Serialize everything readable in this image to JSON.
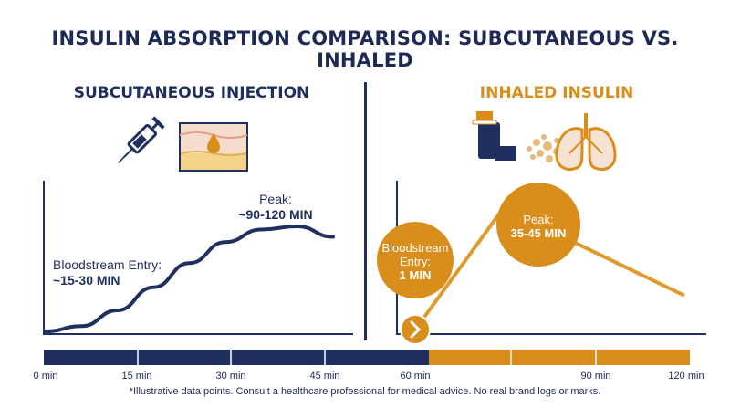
{
  "title": "INSULIN ABSORPTION COMPARISON: SUBCUTANEOUS VS. INHALED",
  "panels": {
    "subcutaneous": {
      "title": "SUBCUTANEOUS INJECTION",
      "entry_label": "Bloodstream Entry:",
      "entry_value": "~15-30 MIN",
      "peak_label": "Peak:",
      "peak_value": "~90-120 MIN"
    },
    "inhaled": {
      "title": "INHALED INSULIN",
      "entry_label_1": "Bloodstream",
      "entry_label_2": "Entry:",
      "entry_value": "1 MIN",
      "peak_label": "Peak:",
      "peak_value": "35-45 MIN"
    }
  },
  "timeline": {
    "ticks": [
      "0 min",
      "15 min",
      "30 min",
      "45 min",
      "60 min",
      "90 min",
      "120 min"
    ],
    "colors": {
      "subcutaneous": "#1f3060",
      "inhaled": "#d98e1c"
    }
  },
  "footnote": "*Illustrative data points. Consult a healthcare professional for medical advice. No real brand logs or marks.",
  "chart_data": [
    {
      "type": "line",
      "name": "Subcutaneous Injection",
      "x": [
        0,
        15,
        30,
        45,
        60,
        75,
        90,
        105,
        120
      ],
      "y": [
        0,
        0.05,
        0.2,
        0.42,
        0.65,
        0.85,
        0.97,
        1.0,
        0.9
      ],
      "annotations": [
        {
          "label": "Bloodstream Entry:",
          "value": "~15-30 MIN"
        },
        {
          "label": "Peak:",
          "value": "~90-120 MIN"
        }
      ]
    },
    {
      "type": "line",
      "name": "Inhaled Insulin",
      "x": [
        1,
        40,
        120
      ],
      "y": [
        0,
        1.0,
        0.28
      ],
      "annotations": [
        {
          "label": "Bloodstream Entry:",
          "value": "1 MIN"
        },
        {
          "label": "Peak:",
          "value": "35-45 MIN"
        }
      ]
    }
  ]
}
